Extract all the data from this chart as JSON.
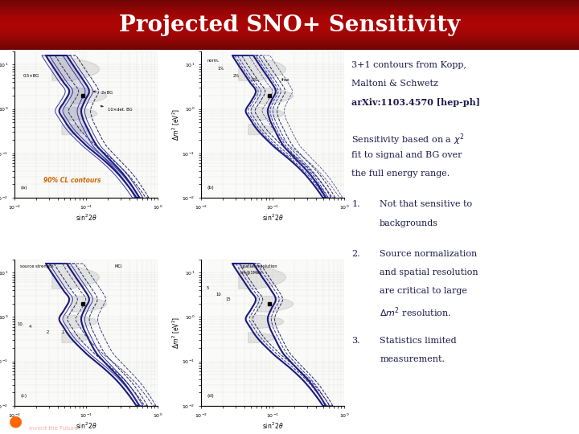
{
  "title": "Projected SNO+ Sensitivity",
  "title_bg_top": "#6B0000",
  "title_bg_mid": "#CC1111",
  "title_bg_bot": "#6B0000",
  "title_text_color": "#FFFFFF",
  "slide_bg_color": "#FFFFFF",
  "panel_bg_color": "#FAFAF8",
  "footer_bg": "#8B0000",
  "right_text_color": "#1A1A4A",
  "cl_label_color": "#CC6600",
  "contour_main_color": "#1A1A7A",
  "contour_alt_color": "#3333AA",
  "contour_thin_color": "#222266"
}
